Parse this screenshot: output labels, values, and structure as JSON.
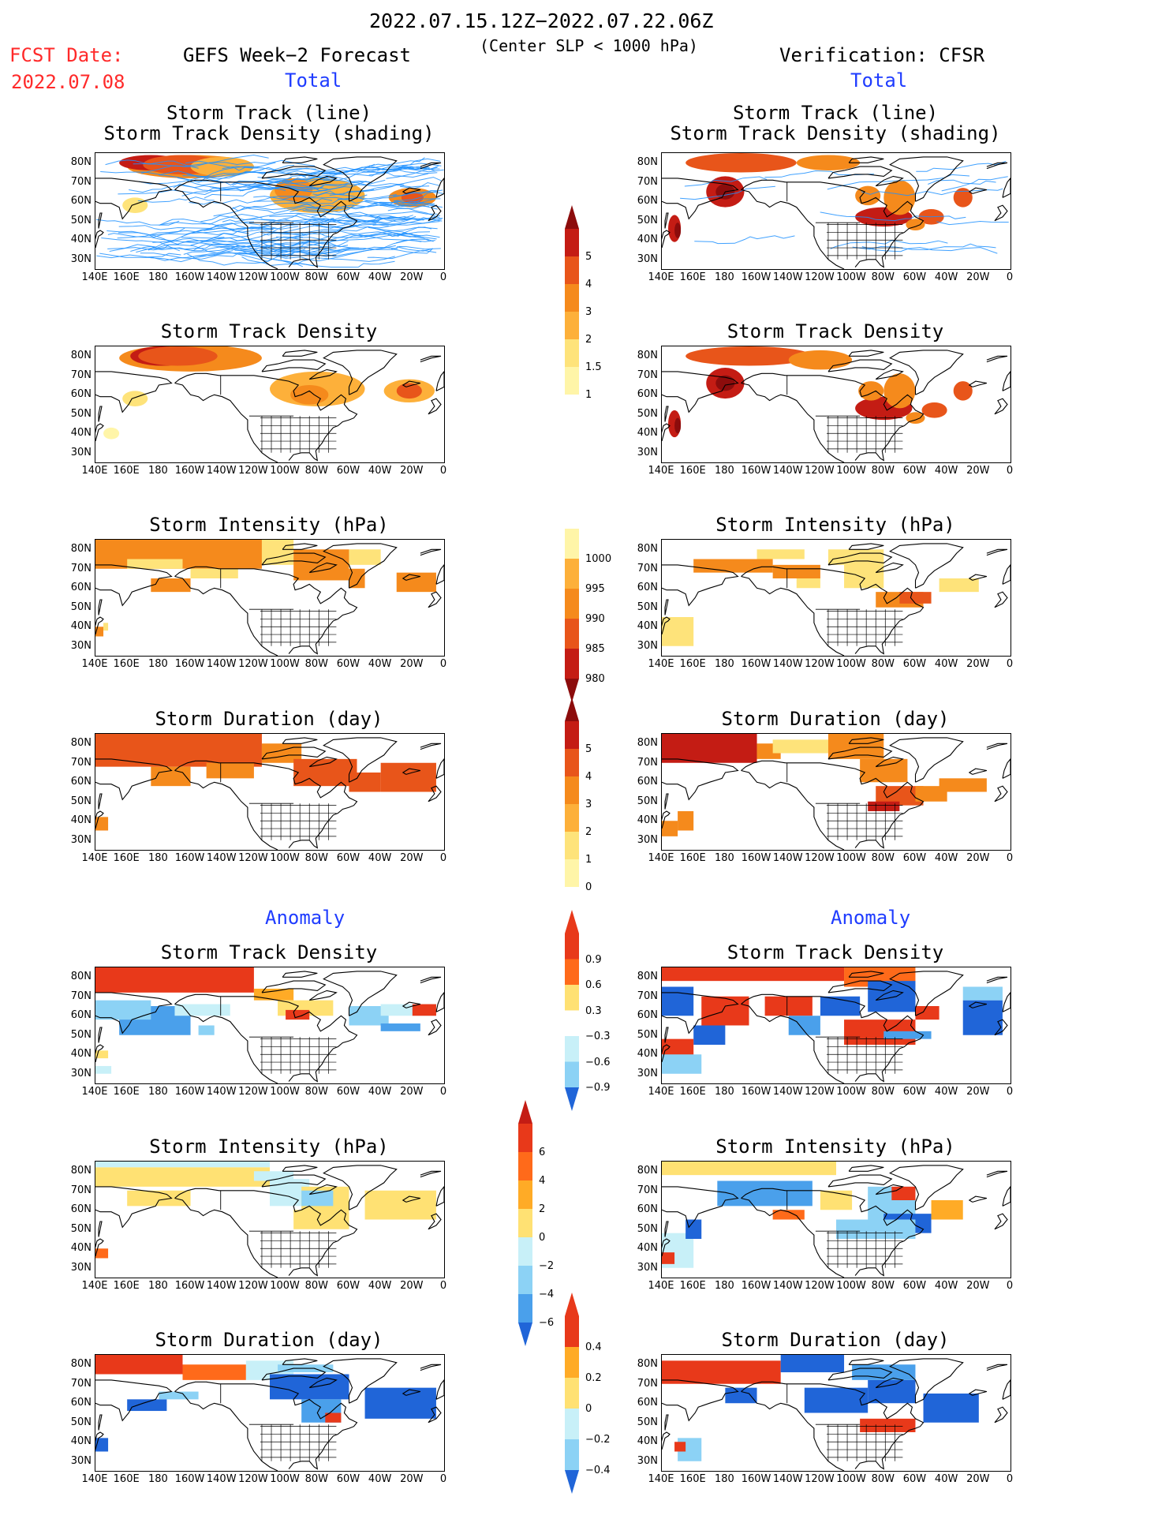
{
  "header": {
    "date_range": "2022.07.15.12Z−2022.07.22.06Z",
    "criterion": "(Center SLP < 1000 hPa)",
    "fcst_label": "FCST Date:",
    "fcst_date": "2022.07.08",
    "left_title": "GEFS Week−2 Forecast",
    "right_title": "Verification: CFSR",
    "left_total": "Total",
    "right_total": "Total",
    "left_anomaly": "Anomaly",
    "right_anomaly": "Anomaly"
  },
  "panels": {
    "l1": {
      "title": "Storm Track (line)\nStorm Track Density (shading)"
    },
    "r1": {
      "title": "Storm Track (line)\nStorm Track Density (shading)"
    },
    "l2": {
      "title": "Storm Track Density"
    },
    "r2": {
      "title": "Storm Track Density"
    },
    "l3": {
      "title": "Storm Intensity (hPa)"
    },
    "r3": {
      "title": "Storm Intensity (hPa)"
    },
    "l4": {
      "title": "Storm Duration (day)"
    },
    "r4": {
      "title": "Storm Duration (day)"
    },
    "l5": {
      "title": "Storm Track Density"
    },
    "r5": {
      "title": "Storm Track Density"
    },
    "l6": {
      "title": "Storm Intensity (hPa)"
    },
    "r6": {
      "title": "Storm Intensity (hPa)"
    },
    "l7": {
      "title": "Storm Duration (day)"
    },
    "r7": {
      "title": "Storm Duration (day)"
    }
  },
  "axes": {
    "lat_labels": [
      "80N",
      "70N",
      "60N",
      "50N",
      "40N",
      "30N"
    ],
    "lon_labels": [
      "140E",
      "160E",
      "180",
      "160W",
      "140W",
      "120W",
      "100W",
      "80W",
      "60W",
      "40W",
      "20W",
      "0"
    ]
  },
  "colorbars": {
    "density": [
      "5",
      "4",
      "3",
      "2",
      "1.5",
      "1"
    ],
    "intensity": [
      "1000",
      "995",
      "990",
      "985",
      "980"
    ],
    "duration": [
      "5",
      "4",
      "3",
      "2",
      "1",
      "0"
    ],
    "density_anom": [
      "0.9",
      "0.6",
      "0.3",
      "−0.3",
      "−0.6",
      "−0.9"
    ],
    "intensity_anom": [
      "6",
      "4",
      "2",
      "0",
      "−2",
      "−4",
      "−6"
    ],
    "duration_anom": [
      "0.4",
      "0.2",
      "0",
      "−0.2",
      "−0.4"
    ]
  },
  "colors": {
    "warm": [
      "#fff5a8",
      "#fee37a",
      "#fdb03a",
      "#f58a1c",
      "#e8551a",
      "#c41c14",
      "#8c0c0c"
    ],
    "anom_pos": [
      "#ffe173",
      "#ffab26",
      "#ff6a1a",
      "#e8391a"
    ],
    "anom_neg": [
      "#c8f0f8",
      "#8cd2f5",
      "#4aa0eb",
      "#2065d8"
    ],
    "track_line": "#1e90ff"
  }
}
